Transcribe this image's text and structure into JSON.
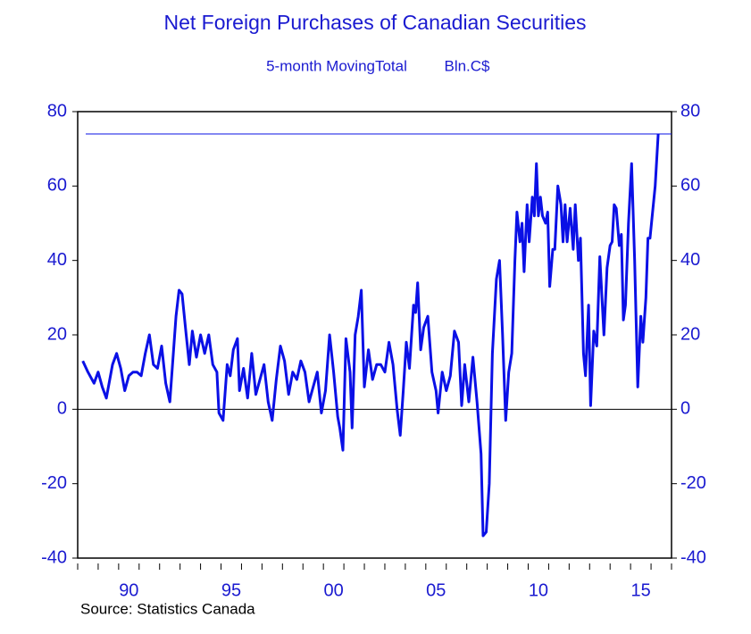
{
  "chart_data": {
    "type": "line",
    "title": "Net Foreign Purchases of Canadian Securities",
    "subtitle": "5-month MovingTotal",
    "unit": "Bln.C$",
    "source": "Source:  Statistics Canada",
    "color": "#0a10e6",
    "x": [
      1988.25,
      1988.5,
      1988.8,
      1989.0,
      1989.2,
      1989.4,
      1989.7,
      1989.9,
      1990.1,
      1990.3,
      1990.5,
      1990.7,
      1990.9,
      1991.1,
      1991.3,
      1991.5,
      1991.7,
      1991.9,
      1992.1,
      1992.3,
      1992.5,
      1992.8,
      1992.95,
      1993.1,
      1993.3,
      1993.45,
      1993.6,
      1993.8,
      1994.0,
      1994.2,
      1994.4,
      1994.6,
      1994.8,
      1994.9,
      1995.1,
      1995.3,
      1995.45,
      1995.6,
      1995.8,
      1995.9,
      1996.1,
      1996.3,
      1996.5,
      1996.7,
      1996.9,
      1997.1,
      1997.3,
      1997.5,
      1997.7,
      1997.9,
      1998.1,
      1998.3,
      1998.5,
      1998.7,
      1998.9,
      1999.1,
      1999.3,
      1999.5,
      1999.7,
      1999.9,
      2000.1,
      2000.3,
      2000.5,
      2000.7,
      2000.8,
      2000.95,
      2001.1,
      2001.3,
      2001.4,
      2001.55,
      2001.7,
      2001.85,
      2002.0,
      2002.2,
      2002.4,
      2002.6,
      2002.8,
      2003.0,
      2003.2,
      2003.4,
      2003.6,
      2003.75,
      2003.9,
      2004.05,
      2004.2,
      2004.4,
      2004.5,
      2004.6,
      2004.75,
      2004.9,
      2005.1,
      2005.3,
      2005.5,
      2005.6,
      2005.8,
      2006.0,
      2006.2,
      2006.4,
      2006.6,
      2006.75,
      2006.9,
      2007.1,
      2007.3,
      2007.5,
      2007.7,
      2007.8,
      2007.95,
      2008.1,
      2008.25,
      2008.45,
      2008.6,
      2008.75,
      2008.9,
      2009.05,
      2009.2,
      2009.35,
      2009.45,
      2009.6,
      2009.7,
      2009.8,
      2009.95,
      2010.05,
      2010.2,
      2010.3,
      2010.4,
      2010.5,
      2010.6,
      2010.7,
      2010.85,
      2010.95,
      2011.05,
      2011.2,
      2011.3,
      2011.45,
      2011.6,
      2011.7,
      2011.8,
      2011.9,
      2012.05,
      2012.2,
      2012.3,
      2012.45,
      2012.55,
      2012.7,
      2012.8,
      2012.95,
      2013.05,
      2013.2,
      2013.35,
      2013.5,
      2013.7,
      2013.85,
      2014.0,
      2014.1,
      2014.2,
      2014.3,
      2014.45,
      2014.55,
      2014.65,
      2014.75,
      2014.9,
      2015.05,
      2015.2,
      2015.35,
      2015.5,
      2015.6,
      2015.75,
      2015.85,
      2015.95,
      2016.2,
      2016.35
    ],
    "values": [
      13,
      10,
      7,
      10,
      6,
      3,
      12,
      15,
      11,
      5,
      9,
      10,
      10,
      9,
      15,
      20,
      12,
      11,
      17,
      7,
      2,
      25,
      32,
      31,
      20,
      12,
      21,
      14,
      20,
      15,
      20,
      12,
      10,
      -1,
      -3,
      12,
      9,
      16,
      19,
      5,
      11,
      3,
      15,
      4,
      8,
      12,
      2,
      -3,
      8,
      17,
      13,
      4,
      10,
      8,
      13,
      10,
      2,
      6,
      10,
      -1,
      5,
      20,
      10,
      -2,
      -5,
      -11,
      19,
      10,
      -5,
      20,
      25,
      32,
      6,
      16,
      8,
      12,
      12,
      10,
      18,
      12,
      0,
      -7,
      5,
      18,
      11,
      28,
      26,
      34,
      16,
      22,
      25,
      10,
      5,
      -1,
      10,
      5,
      9,
      21,
      18,
      1,
      12,
      2,
      14,
      2,
      -12,
      -34,
      -33,
      -20,
      15,
      35,
      40,
      20,
      -3,
      10,
      15,
      40,
      53,
      45,
      50,
      37,
      55,
      45,
      57,
      52,
      66,
      52,
      57,
      52,
      50,
      53,
      33,
      43,
      43,
      60,
      55,
      45,
      55,
      45,
      54,
      43,
      55,
      40,
      46,
      15,
      9,
      28,
      1,
      21,
      17,
      41,
      20,
      38,
      44,
      45,
      55,
      54,
      44,
      47,
      24,
      28,
      50,
      66,
      40,
      6,
      25,
      18,
      30,
      46,
      46,
      60,
      74
    ],
    "hline": 74,
    "zero_line": true,
    "xlim": [
      1988,
      2017
    ],
    "xticks": [
      {
        "value": 1990.5,
        "label": "90"
      },
      {
        "value": 1995.5,
        "label": "95"
      },
      {
        "value": 2000.5,
        "label": "00"
      },
      {
        "value": 2005.5,
        "label": "05"
      },
      {
        "value": 2010.5,
        "label": "10"
      },
      {
        "value": 2015.5,
        "label": "15"
      }
    ],
    "xminorticks": [
      1988,
      1989,
      1990,
      1991,
      1992,
      1993,
      1994,
      1995,
      1996,
      1997,
      1998,
      1999,
      2000,
      2001,
      2002,
      2003,
      2004,
      2005,
      2006,
      2007,
      2008,
      2009,
      2010,
      2011,
      2012,
      2013,
      2014,
      2015,
      2016,
      2017
    ],
    "ylim": [
      -40,
      80
    ],
    "yticks": [
      -40,
      -20,
      0,
      20,
      40,
      60,
      80
    ],
    "y2lim": [
      -40,
      80
    ],
    "y2ticks": [
      -40,
      -20,
      0,
      20,
      40,
      60,
      80
    ]
  }
}
